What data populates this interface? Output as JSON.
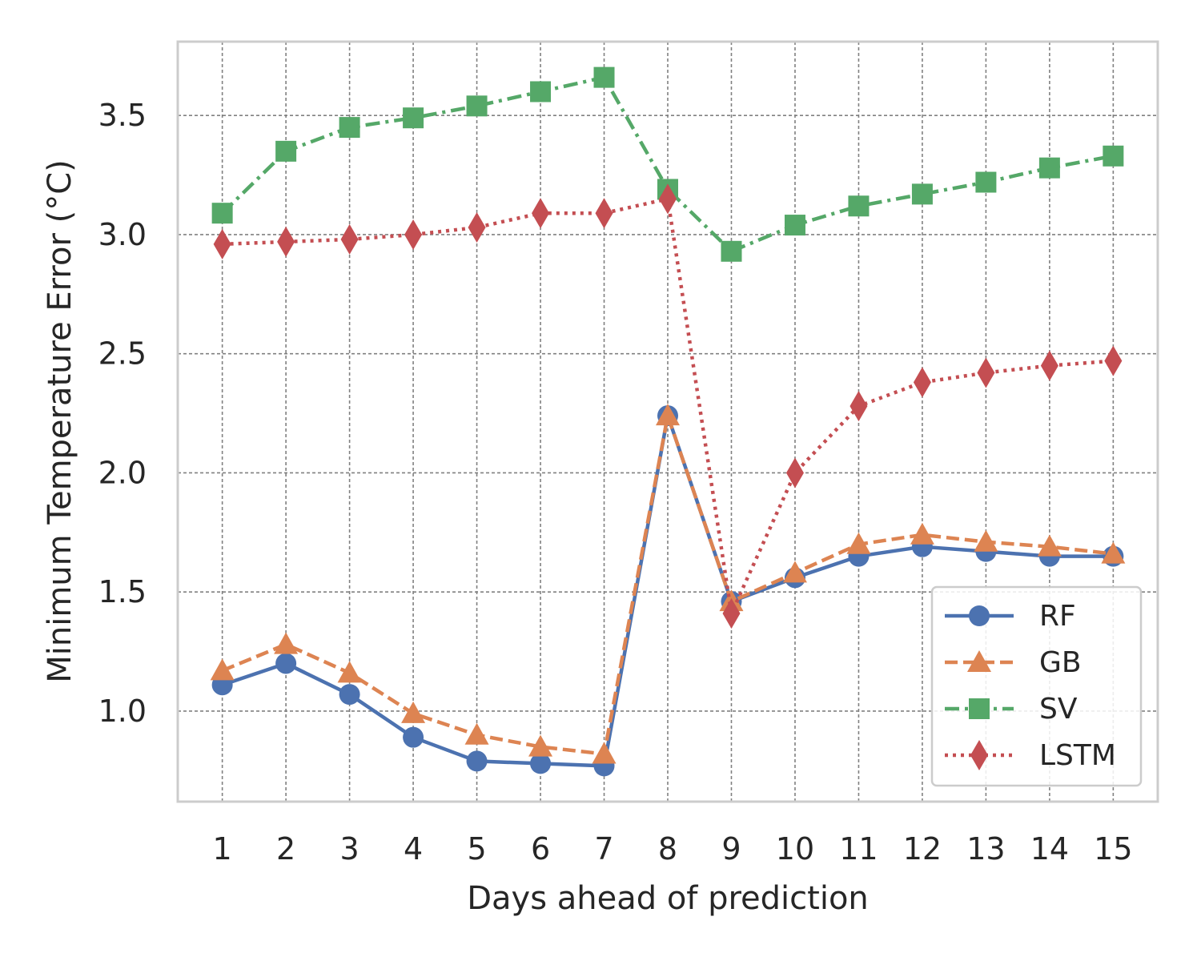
{
  "chart_data": {
    "type": "line",
    "title": "",
    "xlabel": "Days ahead of prediction",
    "ylabel": "Minimum Temperature Error (°C)",
    "x": [
      1,
      2,
      3,
      4,
      5,
      6,
      7,
      8,
      9,
      10,
      11,
      12,
      13,
      14,
      15
    ],
    "x_tick_labels": [
      "1",
      "2",
      "3",
      "4",
      "5",
      "6",
      "7",
      "8",
      "9",
      "10",
      "11",
      "12",
      "13",
      "14",
      "15"
    ],
    "xlim": [
      0.3,
      15.7
    ],
    "ylim": [
      0.62,
      3.81
    ],
    "y_ticks": [
      1.0,
      1.5,
      2.0,
      2.5,
      3.0,
      3.5
    ],
    "y_tick_labels": [
      "1.0",
      "1.5",
      "2.0",
      "2.5",
      "3.0",
      "3.5"
    ],
    "grid": true,
    "legend_position": "lower-right",
    "series": [
      {
        "name": "RF",
        "color": "#4c72b0",
        "marker": "circle",
        "line_style": "solid",
        "values": [
          1.11,
          1.2,
          1.07,
          0.89,
          0.79,
          0.78,
          0.77,
          2.24,
          1.46,
          1.56,
          1.65,
          1.69,
          1.67,
          1.65,
          1.65
        ]
      },
      {
        "name": "GB",
        "color": "#dd8452",
        "marker": "triangle",
        "line_style": "dashed",
        "values": [
          1.17,
          1.28,
          1.16,
          0.99,
          0.9,
          0.85,
          0.82,
          2.24,
          1.46,
          1.58,
          1.7,
          1.74,
          1.71,
          1.69,
          1.66
        ]
      },
      {
        "name": "SV",
        "color": "#55a868",
        "marker": "square",
        "line_style": "dashdot",
        "values": [
          3.09,
          3.35,
          3.45,
          3.49,
          3.54,
          3.6,
          3.66,
          3.19,
          2.93,
          3.04,
          3.12,
          3.17,
          3.22,
          3.28,
          3.33
        ]
      },
      {
        "name": "LSTM",
        "color": "#c44e52",
        "marker": "diamond",
        "line_style": "dotted",
        "values": [
          2.96,
          2.97,
          2.98,
          3.0,
          3.03,
          3.09,
          3.09,
          3.15,
          1.41,
          2.0,
          2.28,
          2.38,
          2.42,
          2.45,
          2.47
        ]
      }
    ]
  }
}
